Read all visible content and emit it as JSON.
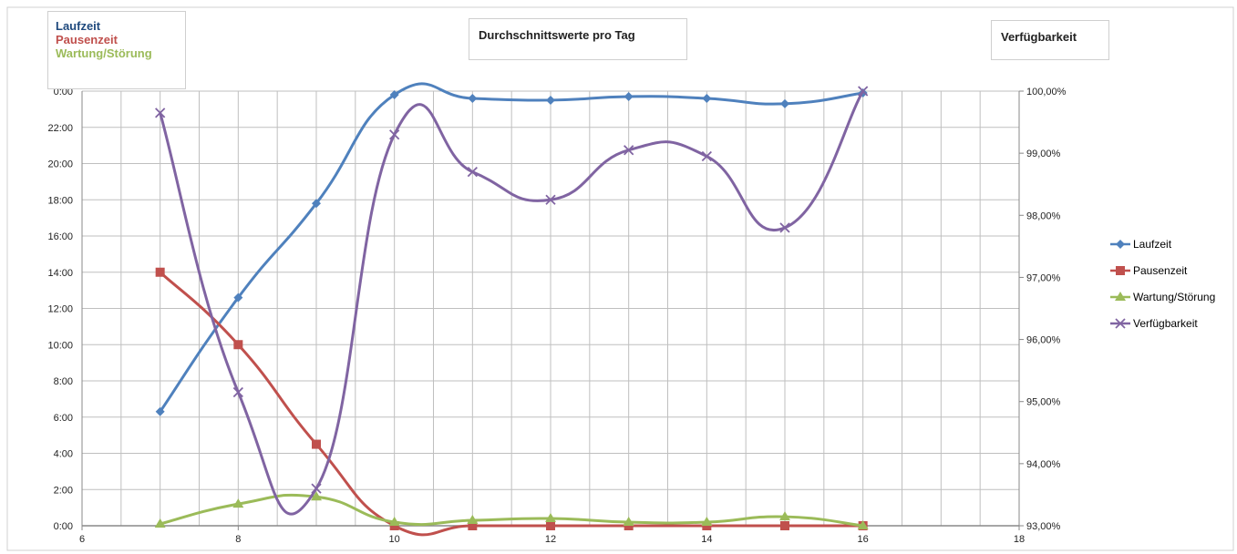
{
  "chart_data": {
    "type": "line",
    "title_boxes": {
      "left": [
        "Laufzeit",
        "Pausenzeit",
        "Wartung/Störung"
      ],
      "center": "Durchschnittswerte pro Tag",
      "right": "Verfügbarkeit"
    },
    "x": {
      "min": 6,
      "max": 18,
      "ticks": [
        6,
        8,
        10,
        12,
        14,
        16,
        18
      ],
      "minor_step": 0.5
    },
    "y_left": {
      "min_hours": 0,
      "max_hours": 24,
      "tick_labels": [
        "0:00",
        "2:00",
        "4:00",
        "6:00",
        "8:00",
        "10:00",
        "12:00",
        "14:00",
        "16:00",
        "18:00",
        "20:00",
        "22:00",
        "0:00"
      ],
      "tick_step_hours": 2
    },
    "y_right": {
      "min": 93.0,
      "max": 100.0,
      "tick_labels": [
        "93,00%",
        "94,00%",
        "95,00%",
        "96,00%",
        "97,00%",
        "98,00%",
        "99,00%",
        "100,00%"
      ],
      "tick_step": 1.0
    },
    "grid": true,
    "legend_position": "right",
    "series": [
      {
        "name": "Laufzeit",
        "axis": "left",
        "color": "#4f81bd",
        "marker": "diamond",
        "points": [
          [
            7,
            6.3
          ],
          [
            8,
            12.6
          ],
          [
            9,
            17.8
          ],
          [
            10,
            23.8
          ],
          [
            11,
            23.6
          ],
          [
            12,
            23.5
          ],
          [
            13,
            23.7
          ],
          [
            14,
            23.6
          ],
          [
            15,
            23.3
          ],
          [
            16,
            23.9
          ]
        ]
      },
      {
        "name": "Pausenzeit",
        "axis": "left",
        "color": "#c0504d",
        "marker": "square",
        "points": [
          [
            7,
            14.0
          ],
          [
            8,
            10.0
          ],
          [
            9,
            4.5
          ],
          [
            10,
            0.0
          ],
          [
            11,
            0.0
          ],
          [
            12,
            0.0
          ],
          [
            13,
            0.0
          ],
          [
            14,
            0.0
          ],
          [
            15,
            0.0
          ],
          [
            16,
            0.0
          ]
        ]
      },
      {
        "name": "Wartung/Störung",
        "axis": "left",
        "color": "#9bbb59",
        "marker": "triangle",
        "points": [
          [
            7,
            0.1
          ],
          [
            8,
            1.2
          ],
          [
            9,
            1.6
          ],
          [
            10,
            0.2
          ],
          [
            11,
            0.3
          ],
          [
            12,
            0.4
          ],
          [
            13,
            0.2
          ],
          [
            14,
            0.2
          ],
          [
            15,
            0.5
          ],
          [
            16,
            0.0
          ]
        ]
      },
      {
        "name": "Verfügbarkeit",
        "axis": "right",
        "color": "#8064a2",
        "marker": "x",
        "points": [
          [
            7,
            99.65
          ],
          [
            8,
            95.15
          ],
          [
            9,
            93.6
          ],
          [
            10,
            99.3
          ],
          [
            11,
            98.7
          ],
          [
            12,
            98.25
          ],
          [
            13,
            99.05
          ],
          [
            14,
            98.95
          ],
          [
            15,
            97.8
          ],
          [
            16,
            100.0
          ]
        ]
      }
    ]
  }
}
